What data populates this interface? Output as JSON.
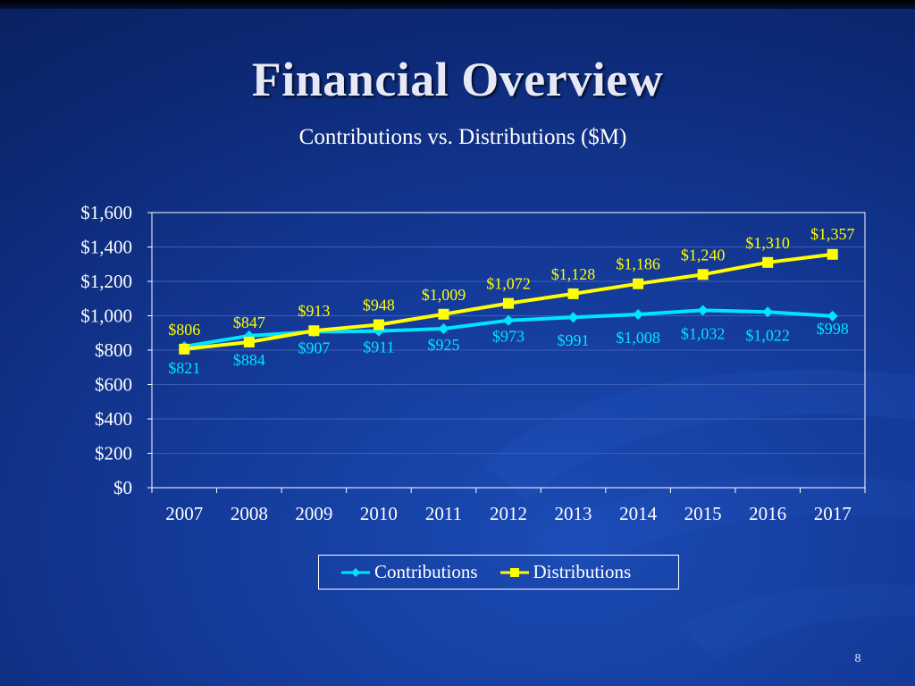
{
  "slide": {
    "title": "Financial Overview",
    "subtitle": "Contributions vs. Distributions ($M)",
    "page_number": "8"
  },
  "colors": {
    "contributions": "#00e5ff",
    "distributions": "#ffff00",
    "axis": "#ffffff",
    "gridline": "#3a5fb8"
  },
  "legend": {
    "contributions_label": "Contributions",
    "distributions_label": "Distributions"
  },
  "chart_data": {
    "type": "line",
    "title": "Contributions vs. Distributions ($M)",
    "xlabel": "",
    "ylabel": "",
    "ylim": [
      0,
      1600
    ],
    "yticks": [
      0,
      200,
      400,
      600,
      800,
      1000,
      1200,
      1400,
      1600
    ],
    "ytick_labels": [
      "$0",
      "$200",
      "$400",
      "$600",
      "$800",
      "$1,000",
      "$1,200",
      "$1,400",
      "$1,600"
    ],
    "grid": true,
    "legend_position": "bottom",
    "categories": [
      "2007",
      "2008",
      "2009",
      "2010",
      "2011",
      "2012",
      "2013",
      "2014",
      "2015",
      "2016",
      "2017"
    ],
    "series": [
      {
        "name": "Contributions",
        "color": "#00e5ff",
        "marker": "diamond",
        "values": [
          821,
          884,
          907,
          911,
          925,
          973,
          991,
          1008,
          1032,
          1022,
          998
        ],
        "labels": [
          "$821",
          "$884",
          "$907",
          "$911",
          "$925",
          "$973",
          "$991",
          "$1,008",
          "$1,032",
          "$1,022",
          "$998"
        ]
      },
      {
        "name": "Distributions",
        "color": "#ffff00",
        "marker": "square",
        "values": [
          806,
          847,
          913,
          948,
          1009,
          1072,
          1128,
          1186,
          1240,
          1310,
          1357
        ],
        "labels": [
          "$806",
          "$847",
          "$913",
          "$948",
          "$1,009",
          "$1,072",
          "$1,128",
          "$1,186",
          "$1,240",
          "$1,310",
          "$1,357"
        ]
      }
    ]
  }
}
